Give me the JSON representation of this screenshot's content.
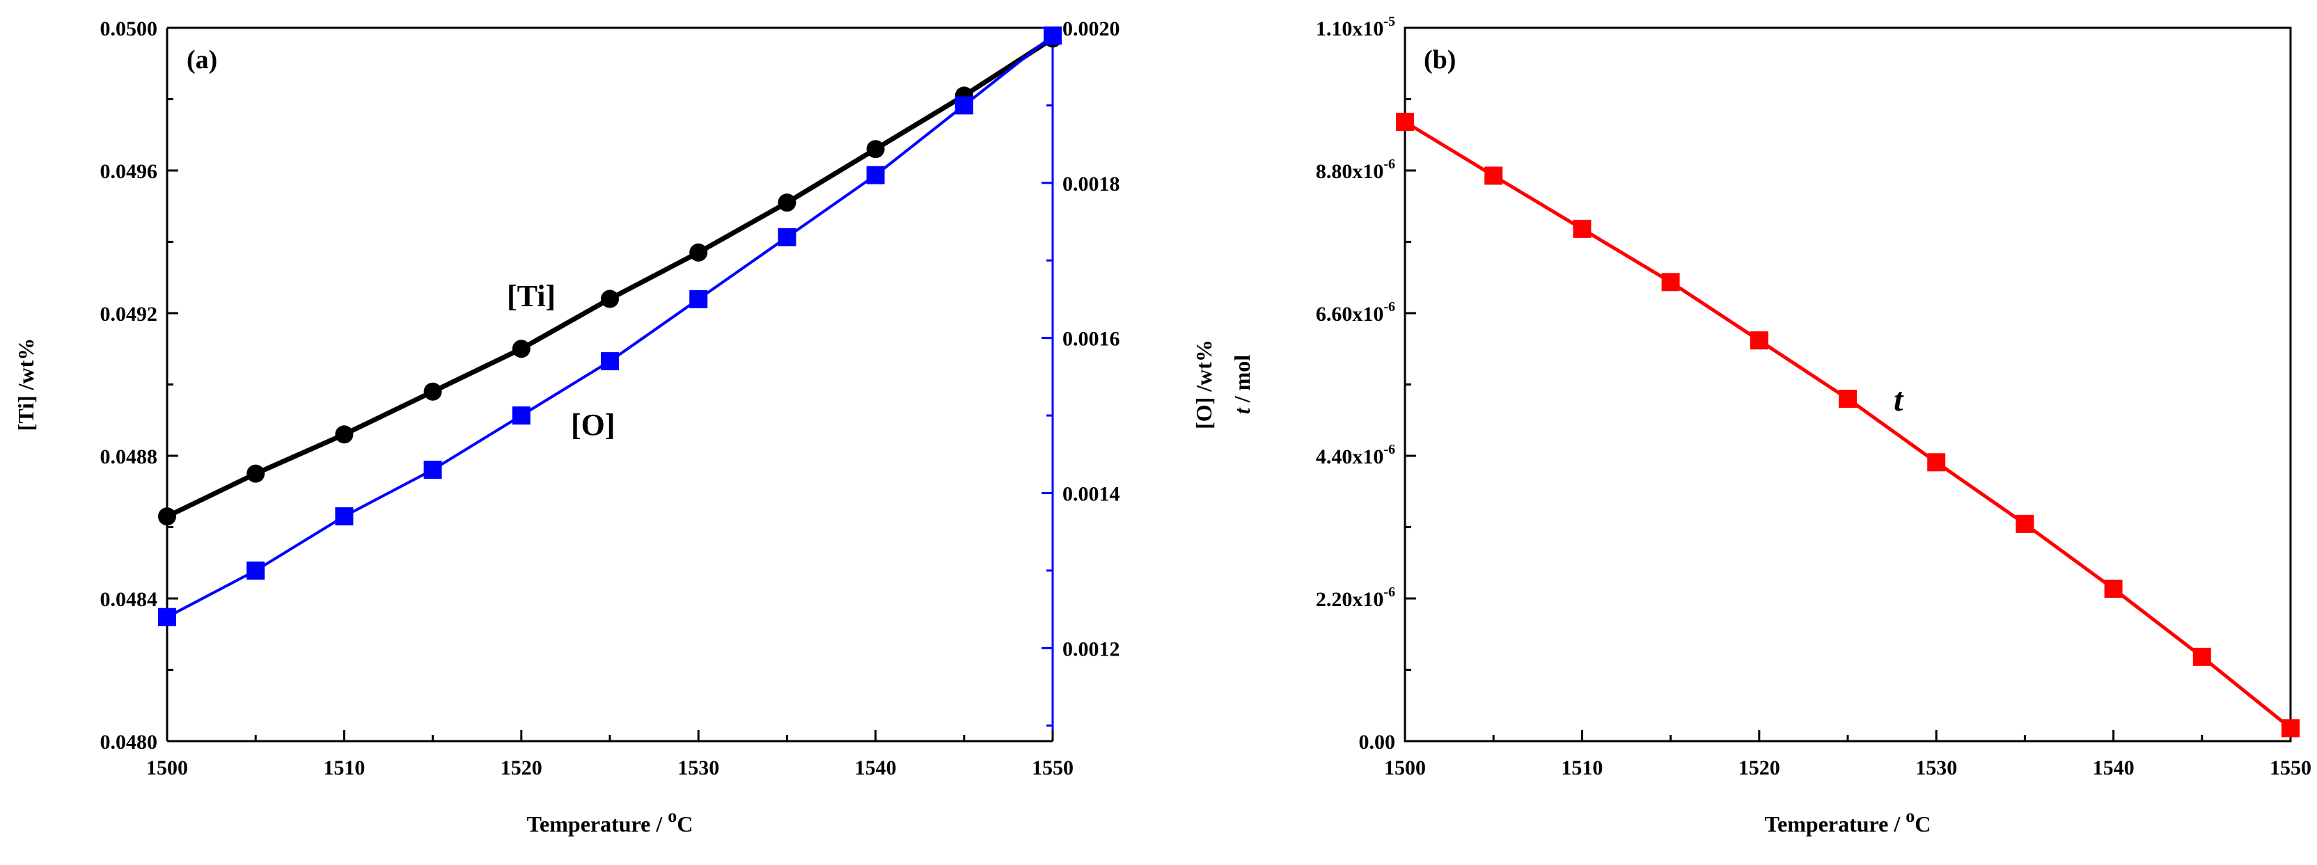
{
  "chart_data": [
    {
      "panel": "(a)",
      "type": "line",
      "x": [
        1500,
        1505,
        1510,
        1515,
        1520,
        1525,
        1530,
        1535,
        1540,
        1545,
        1550
      ],
      "xlim": [
        1500,
        1550
      ],
      "xticks": [
        "1500",
        "1510",
        "1520",
        "1530",
        "1540",
        "1550"
      ],
      "xlabel_text": "Temperature / ",
      "xlabel_sup": "o",
      "xlabel_unit": "C",
      "left_axis": {
        "label": "[Ti] /wt%",
        "ylim": [
          0.048,
          0.05
        ],
        "ticks": [
          "0.0480",
          "0.0484",
          "0.0488",
          "0.0492",
          "0.0496",
          "0.0500"
        ],
        "color": "#000000"
      },
      "right_axis": {
        "label": "[O] /wt%",
        "ylim": [
          0.00108,
          0.002
        ],
        "ticks": [
          "0.0012",
          "0.0014",
          "0.0016",
          "0.0018",
          "0.0020"
        ],
        "color": "#0000ff"
      },
      "series": [
        {
          "name": "[Ti]",
          "axis": "left",
          "marker": "circle",
          "color": "#000000",
          "values": [
            0.04863,
            0.04875,
            0.04886,
            0.04898,
            0.0491,
            0.04924,
            0.04937,
            0.04951,
            0.04966,
            0.04981,
            0.04997
          ]
        },
        {
          "name": "[O]",
          "axis": "right",
          "marker": "square",
          "color": "#0000ff",
          "values": [
            0.00124,
            0.0013,
            0.00137,
            0.00143,
            0.0015,
            0.00157,
            0.00165,
            0.00173,
            0.00181,
            0.0019,
            0.00199
          ]
        }
      ]
    },
    {
      "panel": "(b)",
      "type": "line",
      "x": [
        1500,
        1505,
        1510,
        1515,
        1520,
        1525,
        1530,
        1535,
        1540,
        1545,
        1550
      ],
      "xlim": [
        1500,
        1550
      ],
      "xticks": [
        "1500",
        "1510",
        "1520",
        "1530",
        "1540",
        "1550"
      ],
      "xlabel_text": "Temperature / ",
      "xlabel_sup": "o",
      "xlabel_unit": "C",
      "ylabel_italic": "t",
      "ylabel_rest": " / mol",
      "ylim": [
        0,
        1.1e-05
      ],
      "yticks": [
        {
          "mant": "0.00",
          "exp": ""
        },
        {
          "mant": "2.20x10",
          "exp": "-6"
        },
        {
          "mant": "4.40x10",
          "exp": "-6"
        },
        {
          "mant": "6.60x10",
          "exp": "-6"
        },
        {
          "mant": "8.80x10",
          "exp": "-6"
        },
        {
          "mant": "1.10x10",
          "exp": "-5"
        }
      ],
      "series": [
        {
          "name": "t",
          "marker": "square",
          "color": "#ff0000",
          "values": [
            9.55e-06,
            8.72e-06,
            7.9e-06,
            7.08e-06,
            6.18e-06,
            5.28e-06,
            4.3e-06,
            3.35e-06,
            2.35e-06,
            1.3e-06,
            2e-07
          ]
        }
      ]
    }
  ]
}
